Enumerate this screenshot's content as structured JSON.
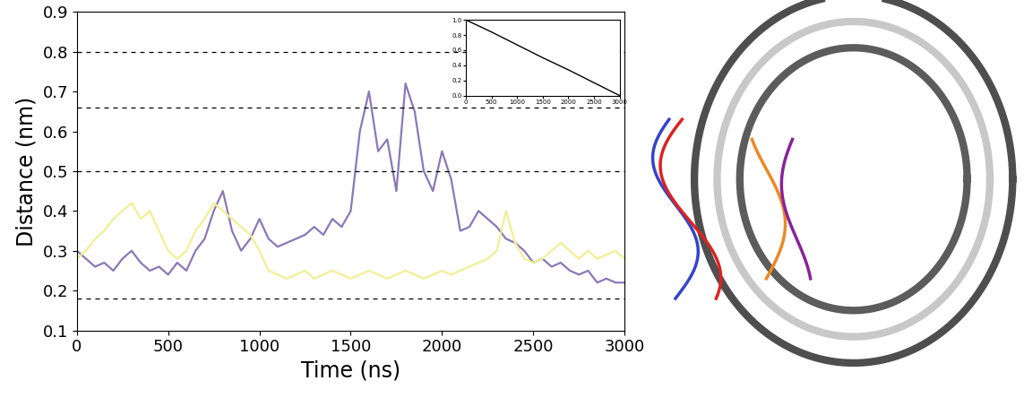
{
  "chart_data": [
    {
      "type": "line",
      "x_label": "Time (ns)",
      "y_label": "Distance (nm)",
      "x": [
        0,
        50,
        100,
        150,
        200,
        250,
        300,
        350,
        400,
        450,
        500,
        550,
        600,
        650,
        700,
        750,
        800,
        850,
        900,
        950,
        1000,
        1050,
        1100,
        1150,
        1200,
        1250,
        1300,
        1350,
        1400,
        1450,
        1500,
        1550,
        1600,
        1650,
        1700,
        1750,
        1800,
        1850,
        1900,
        1950,
        2000,
        2050,
        2100,
        2150,
        2200,
        2250,
        2300,
        2350,
        2400,
        2450,
        2500,
        2550,
        2600,
        2650,
        2700,
        2750,
        2800,
        2850,
        2900,
        2950,
        3000
      ],
      "series": [
        {
          "color": "#8a78b8",
          "values": [
            0.3,
            0.28,
            0.26,
            0.27,
            0.25,
            0.28,
            0.3,
            0.27,
            0.25,
            0.26,
            0.24,
            0.27,
            0.25,
            0.3,
            0.33,
            0.4,
            0.45,
            0.35,
            0.3,
            0.33,
            0.38,
            0.33,
            0.31,
            0.32,
            0.33,
            0.34,
            0.36,
            0.34,
            0.38,
            0.36,
            0.4,
            0.6,
            0.7,
            0.55,
            0.58,
            0.45,
            0.72,
            0.65,
            0.5,
            0.45,
            0.55,
            0.48,
            0.35,
            0.36,
            0.4,
            0.38,
            0.36,
            0.33,
            0.32,
            0.3,
            0.27,
            0.28,
            0.26,
            0.27,
            0.25,
            0.24,
            0.25,
            0.22,
            0.23,
            0.22,
            0.22
          ]
        },
        {
          "color": "#f3ee94",
          "values": [
            0.28,
            0.3,
            0.33,
            0.35,
            0.38,
            0.4,
            0.42,
            0.38,
            0.4,
            0.35,
            0.3,
            0.28,
            0.3,
            0.35,
            0.38,
            0.42,
            0.4,
            0.38,
            0.36,
            0.34,
            0.3,
            0.25,
            0.24,
            0.23,
            0.24,
            0.25,
            0.23,
            0.24,
            0.25,
            0.24,
            0.23,
            0.24,
            0.25,
            0.24,
            0.23,
            0.24,
            0.25,
            0.24,
            0.23,
            0.24,
            0.25,
            0.24,
            0.25,
            0.26,
            0.27,
            0.28,
            0.3,
            0.4,
            0.32,
            0.28,
            0.27,
            0.28,
            0.3,
            0.32,
            0.3,
            0.28,
            0.3,
            0.28,
            0.29,
            0.3,
            0.28
          ]
        }
      ],
      "hlines": [
        0.18,
        0.5,
        0.66,
        0.8
      ],
      "xlim": [
        0,
        3000
      ],
      "xticks": [
        0,
        500,
        1000,
        1500,
        2000,
        2500,
        3000
      ],
      "ylim": [
        0.1,
        0.9
      ],
      "yticks": [
        0.1,
        0.2,
        0.3,
        0.4,
        0.5,
        0.6,
        0.7,
        0.8,
        0.9
      ]
    },
    {
      "type": "line",
      "x": [
        0,
        500,
        1000,
        1500,
        2000,
        2500,
        3000
      ],
      "series": [
        {
          "color": "#000000",
          "values": [
            1.0,
            0.84,
            0.67,
            0.5,
            0.34,
            0.17,
            0.0
          ]
        }
      ],
      "xlim": [
        0,
        3000
      ],
      "xticks": [
        0,
        500,
        1000,
        1500,
        2000,
        2500,
        3000
      ],
      "ylim": [
        0,
        1
      ],
      "yticks": [
        {
          "value": 0,
          "label": "0.0"
        },
        0.2,
        0.4,
        0.6,
        0.8,
        {
          "value": 1,
          "label": "1.0"
        }
      ]
    }
  ]
}
